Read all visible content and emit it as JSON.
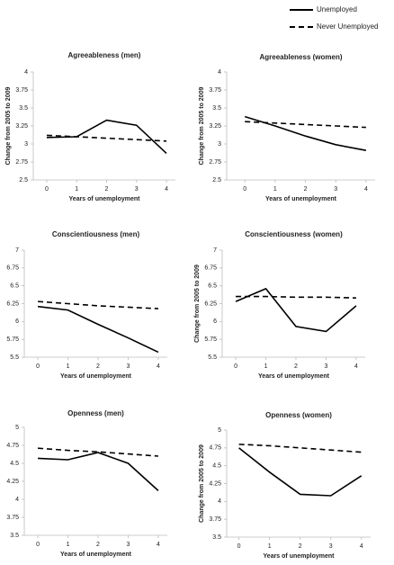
{
  "chart_data": [
    {
      "type": "line",
      "title": "Agreeableness (men)",
      "x_label": "Years of unemployment",
      "y_label": "Change from 2005 to 2009",
      "x": [
        0,
        1,
        2,
        3,
        4
      ],
      "xlim": [
        -0.45,
        4.3
      ],
      "xticks": [
        0,
        1,
        2,
        3,
        4
      ],
      "ylim": [
        2.5,
        4
      ],
      "yticks": [
        2.5,
        2.75,
        3,
        3.25,
        3.5,
        3.75,
        4
      ],
      "series": [
        {
          "name": "Unemployed",
          "color": "#000000",
          "dash": "solid",
          "values": [
            3.09,
            3.1,
            3.33,
            3.26,
            2.87
          ]
        },
        {
          "name": "Never Unemployed",
          "color": "#000000",
          "dash": "dashed",
          "values": [
            3.12,
            3.1,
            3.08,
            3.06,
            3.04
          ]
        }
      ]
    },
    {
      "type": "line",
      "title": "Agreeableness (women)",
      "x_label": "Years of unemployment",
      "y_label": "Change from 2005 to 2009",
      "x": [
        0,
        1,
        2,
        3,
        4
      ],
      "xlim": [
        -0.6,
        4.3
      ],
      "xticks": [
        0,
        1,
        2,
        3,
        4
      ],
      "ylim": [
        2.5,
        4
      ],
      "yticks": [
        2.5,
        2.75,
        3,
        3.25,
        3.5,
        3.75,
        4
      ],
      "series": [
        {
          "name": "Unemployed",
          "color": "#000000",
          "dash": "solid",
          "values": [
            3.38,
            3.25,
            3.11,
            2.99,
            2.91
          ]
        },
        {
          "name": "Never Unemployed",
          "color": "#000000",
          "dash": "dashed",
          "values": [
            3.31,
            3.29,
            3.27,
            3.25,
            3.23
          ]
        }
      ]
    },
    {
      "type": "line",
      "title": "Conscientiousness (men)",
      "x_label": "Years of unemployment",
      "x": [
        0,
        1,
        2,
        3,
        4
      ],
      "xlim": [
        -0.45,
        4.3
      ],
      "xticks": [
        0,
        1,
        2,
        3,
        4
      ],
      "ylim": [
        5.5,
        7
      ],
      "yticks": [
        5.5,
        5.75,
        6,
        6.25,
        6.5,
        6.75,
        7
      ],
      "series": [
        {
          "name": "Unemployed",
          "color": "#000000",
          "dash": "solid",
          "values": [
            6.21,
            6.16,
            5.96,
            5.77,
            5.57
          ]
        },
        {
          "name": "Never Unemployed",
          "color": "#000000",
          "dash": "dashed",
          "values": [
            6.28,
            6.25,
            6.22,
            6.2,
            6.18
          ]
        }
      ]
    },
    {
      "type": "line",
      "title": "Conscientiousness (women)",
      "x_label": "Years of unemployment",
      "y_label": "Change from 2005 to 2009",
      "x": [
        0,
        1,
        2,
        3,
        4
      ],
      "xlim": [
        -0.45,
        4.3
      ],
      "xticks": [
        0,
        1,
        2,
        3,
        4
      ],
      "ylim": [
        5.5,
        7
      ],
      "yticks": [
        5.5,
        5.75,
        6,
        6.25,
        6.5,
        6.75,
        7
      ],
      "series": [
        {
          "name": "Unemployed",
          "color": "#000000",
          "dash": "solid",
          "values": [
            6.28,
            6.46,
            5.93,
            5.86,
            6.22
          ]
        },
        {
          "name": "Never Unemployed",
          "color": "#000000",
          "dash": "dashed",
          "values": [
            6.35,
            6.35,
            6.34,
            6.34,
            6.33
          ]
        }
      ]
    },
    {
      "type": "line",
      "title": "Openness (men)",
      "x_label": "Years of unemployment",
      "x": [
        0,
        1,
        2,
        3,
        4
      ],
      "xlim": [
        -0.45,
        4.3
      ],
      "xticks": [
        0,
        1,
        2,
        3,
        4
      ],
      "ylim": [
        3.5,
        5
      ],
      "yticks": [
        3.5,
        3.75,
        4,
        4.25,
        4.5,
        4.75,
        5
      ],
      "series": [
        {
          "name": "Unemployed",
          "color": "#000000",
          "dash": "solid",
          "values": [
            4.57,
            4.55,
            4.65,
            4.5,
            4.12
          ]
        },
        {
          "name": "Never Unemployed",
          "color": "#000000",
          "dash": "dashed",
          "values": [
            4.71,
            4.68,
            4.66,
            4.63,
            4.6
          ]
        }
      ]
    },
    {
      "type": "line",
      "title": "Openness (women)",
      "x_label": "Years of unemployment",
      "y_label": "Change from 2005 to 2009",
      "x": [
        0,
        1,
        2,
        3,
        4
      ],
      "xlim": [
        -0.4,
        4.3
      ],
      "xticks": [
        0,
        1,
        2,
        3,
        4
      ],
      "ylim": [
        3.5,
        5
      ],
      "yticks": [
        3.5,
        3.75,
        4,
        4.25,
        4.5,
        4.75,
        5
      ],
      "series": [
        {
          "name": "Unemployed",
          "color": "#000000",
          "dash": "solid",
          "values": [
            4.75,
            4.41,
            4.1,
            4.08,
            4.36
          ]
        },
        {
          "name": "Never Unemployed",
          "color": "#000000",
          "dash": "dashed",
          "values": [
            4.8,
            4.78,
            4.75,
            4.72,
            4.69
          ]
        }
      ]
    }
  ]
}
